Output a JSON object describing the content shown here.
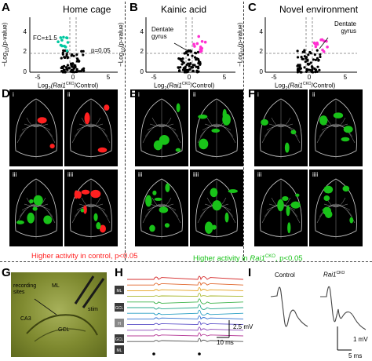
{
  "panels": {
    "A": {
      "label": "A",
      "title": "Home cage",
      "fc_label": "FC=±1.5",
      "p_label": "p=0.05",
      "dots": "#00c8a0"
    },
    "B": {
      "label": "B",
      "title": "Kainic acid",
      "annot": "Dentate gyrus",
      "dots": "#ff2fd0"
    },
    "C": {
      "label": "C",
      "title": "Novel environment",
      "annot": "Dentate gyrus",
      "dots": "#ff2fd0"
    },
    "D": {
      "label": "D"
    },
    "E": {
      "label": "E"
    },
    "F": {
      "label": "F"
    },
    "G": {
      "label": "G",
      "recording_sites": "recording sites",
      "ml": "ML",
      "stim": "stim",
      "ca3": "CA3",
      "gcl": "GCL"
    },
    "H": {
      "label": "H",
      "row_tags": [
        "ML",
        "GCL",
        "H",
        "GCL",
        "ML"
      ],
      "scale_v": "2.5 mV",
      "scale_t": "10 ms"
    },
    "I": {
      "label": "I",
      "control": "Control",
      "rai1": "Rai1",
      "rai1_sup": "CKO",
      "scale_v": "1 mV",
      "scale_t": "5 ms"
    }
  },
  "axes": {
    "ylabel_prefix": "−Log",
    "ylabel_sub": "10",
    "ylabel_suffix": "(p-value)",
    "xlabel_prefix": "Log",
    "xlabel_sub": "2",
    "xlabel_mid": "(Rai1",
    "xlabel_sup": "CKO",
    "xlabel_suffix": "/Control)",
    "yticks": [
      "0",
      "2",
      "4"
    ],
    "xticks": [
      "-5",
      "0",
      "5"
    ]
  },
  "subpanels": [
    "i",
    "ii",
    "iii",
    "iiii"
  ],
  "legend": {
    "red": "Higher activity in control, p<0.05",
    "green_pre": "Higher activity in ",
    "green_it": "Rai1",
    "green_sup": "CKO",
    "green_post": ", p<0.05",
    "red_color": "#ff2020",
    "green_color": "#19c219"
  },
  "colors": {
    "red": "#ff2020",
    "green": "#19c219",
    "cyan": "#00c8a0",
    "magenta": "#ff2fd0"
  }
}
